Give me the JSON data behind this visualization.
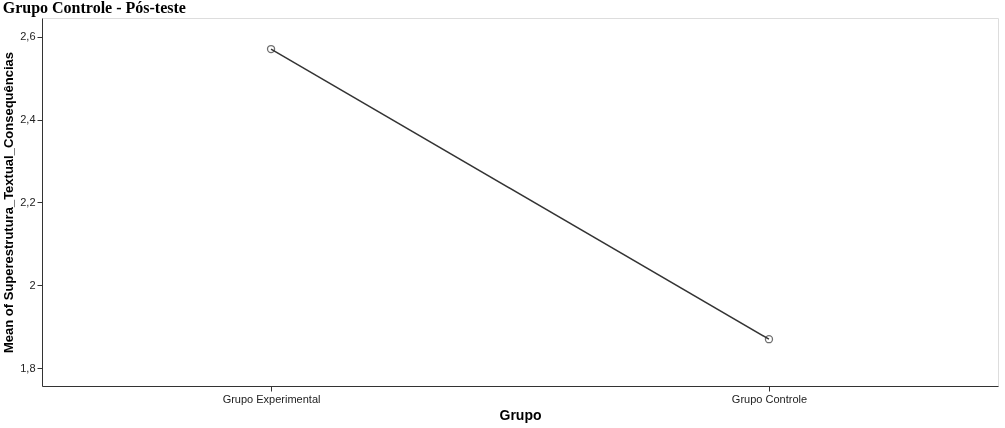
{
  "chart_data": {
    "type": "line",
    "title": "Grupo Controle - Pós-teste",
    "xlabel": "Grupo",
    "ylabel": "Mean of Superestrutura_Textual_Consequências",
    "categories": [
      "Grupo Experimental",
      "Grupo Controle"
    ],
    "series": [
      {
        "color": "#333333",
        "values": [
          2.57,
          1.87
        ]
      }
    ],
    "ylim": [
      1.757,
      2.645
    ],
    "yticks": [
      {
        "value": 1.8,
        "label": "1,8"
      },
      {
        "value": 2,
        "label": "2"
      },
      {
        "value": 2.2,
        "label": "2,2"
      },
      {
        "value": 2.4,
        "label": "2,4"
      },
      {
        "value": 2.6,
        "label": "2,6"
      }
    ],
    "grid": false,
    "marker": "circle",
    "line_style": "solid"
  }
}
